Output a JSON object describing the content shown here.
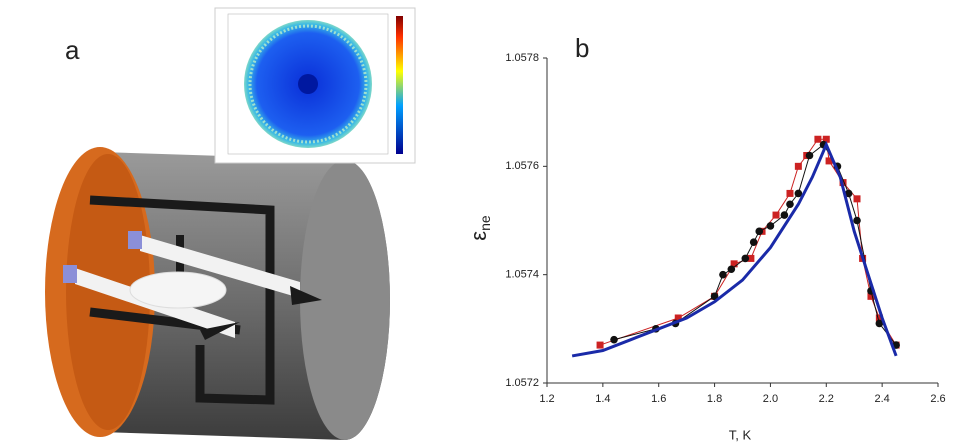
{
  "panel_labels": [
    "a",
    "b"
  ],
  "chart_data": {
    "type": "line",
    "x_label": "T, K",
    "y_label": "ε",
    "y_label_subscript": "ne",
    "xlim": [
      1.2,
      2.6
    ],
    "xticks": [
      1.2,
      1.4,
      1.6,
      1.8,
      {
        "value": 2,
        "label": "2.0"
      },
      2.2,
      2.4,
      2.6
    ],
    "ylim": [
      1.0572,
      1.0578
    ],
    "yticks": [
      1.0572,
      1.0574,
      1.0576,
      1.0578
    ],
    "series": [
      {
        "color": "#cc2222",
        "marker": "square",
        "line_width": 1,
        "x": [
          1.39,
          1.67,
          1.8,
          1.87,
          1.93,
          1.97,
          2.02,
          2.07,
          2.1,
          2.13,
          2.17,
          2.2,
          2.21,
          2.26,
          2.31,
          2.33,
          2.36,
          2.39,
          2.45
        ],
        "values": [
          1.05727,
          1.05732,
          1.05736,
          1.05742,
          1.05743,
          1.05748,
          1.05751,
          1.05755,
          1.0576,
          1.05762,
          1.05765,
          1.05765,
          1.05761,
          1.05757,
          1.05754,
          1.05743,
          1.05736,
          1.05732,
          1.05727
        ]
      },
      {
        "color": "#111111",
        "marker": "circle",
        "line_width": 1,
        "x": [
          1.44,
          1.59,
          1.66,
          1.8,
          1.83,
          1.86,
          1.91,
          1.94,
          1.96,
          2.0,
          2.05,
          2.07,
          2.1,
          2.14,
          2.19,
          2.24,
          2.28,
          2.31,
          2.36,
          2.39,
          2.45
        ],
        "values": [
          1.05728,
          1.0573,
          1.05731,
          1.05736,
          1.0574,
          1.05741,
          1.05743,
          1.05746,
          1.05748,
          1.05749,
          1.05751,
          1.05753,
          1.05755,
          1.05762,
          1.05764,
          1.0576,
          1.05755,
          1.0575,
          1.05737,
          1.05731,
          1.05727
        ]
      },
      {
        "color": "#1a2aa8",
        "marker": "none",
        "line_width": 3,
        "x": [
          1.29,
          1.4,
          1.5,
          1.6,
          1.7,
          1.8,
          1.9,
          2.0,
          2.1,
          2.15,
          2.2,
          2.25,
          2.3,
          2.35,
          2.4,
          2.45
        ],
        "values": [
          1.05725,
          1.05726,
          1.05728,
          1.0573,
          1.05732,
          1.05735,
          1.05739,
          1.05745,
          1.05753,
          1.05758,
          1.05764,
          1.05758,
          1.05748,
          1.0574,
          1.05732,
          1.05725
        ]
      }
    ]
  }
}
